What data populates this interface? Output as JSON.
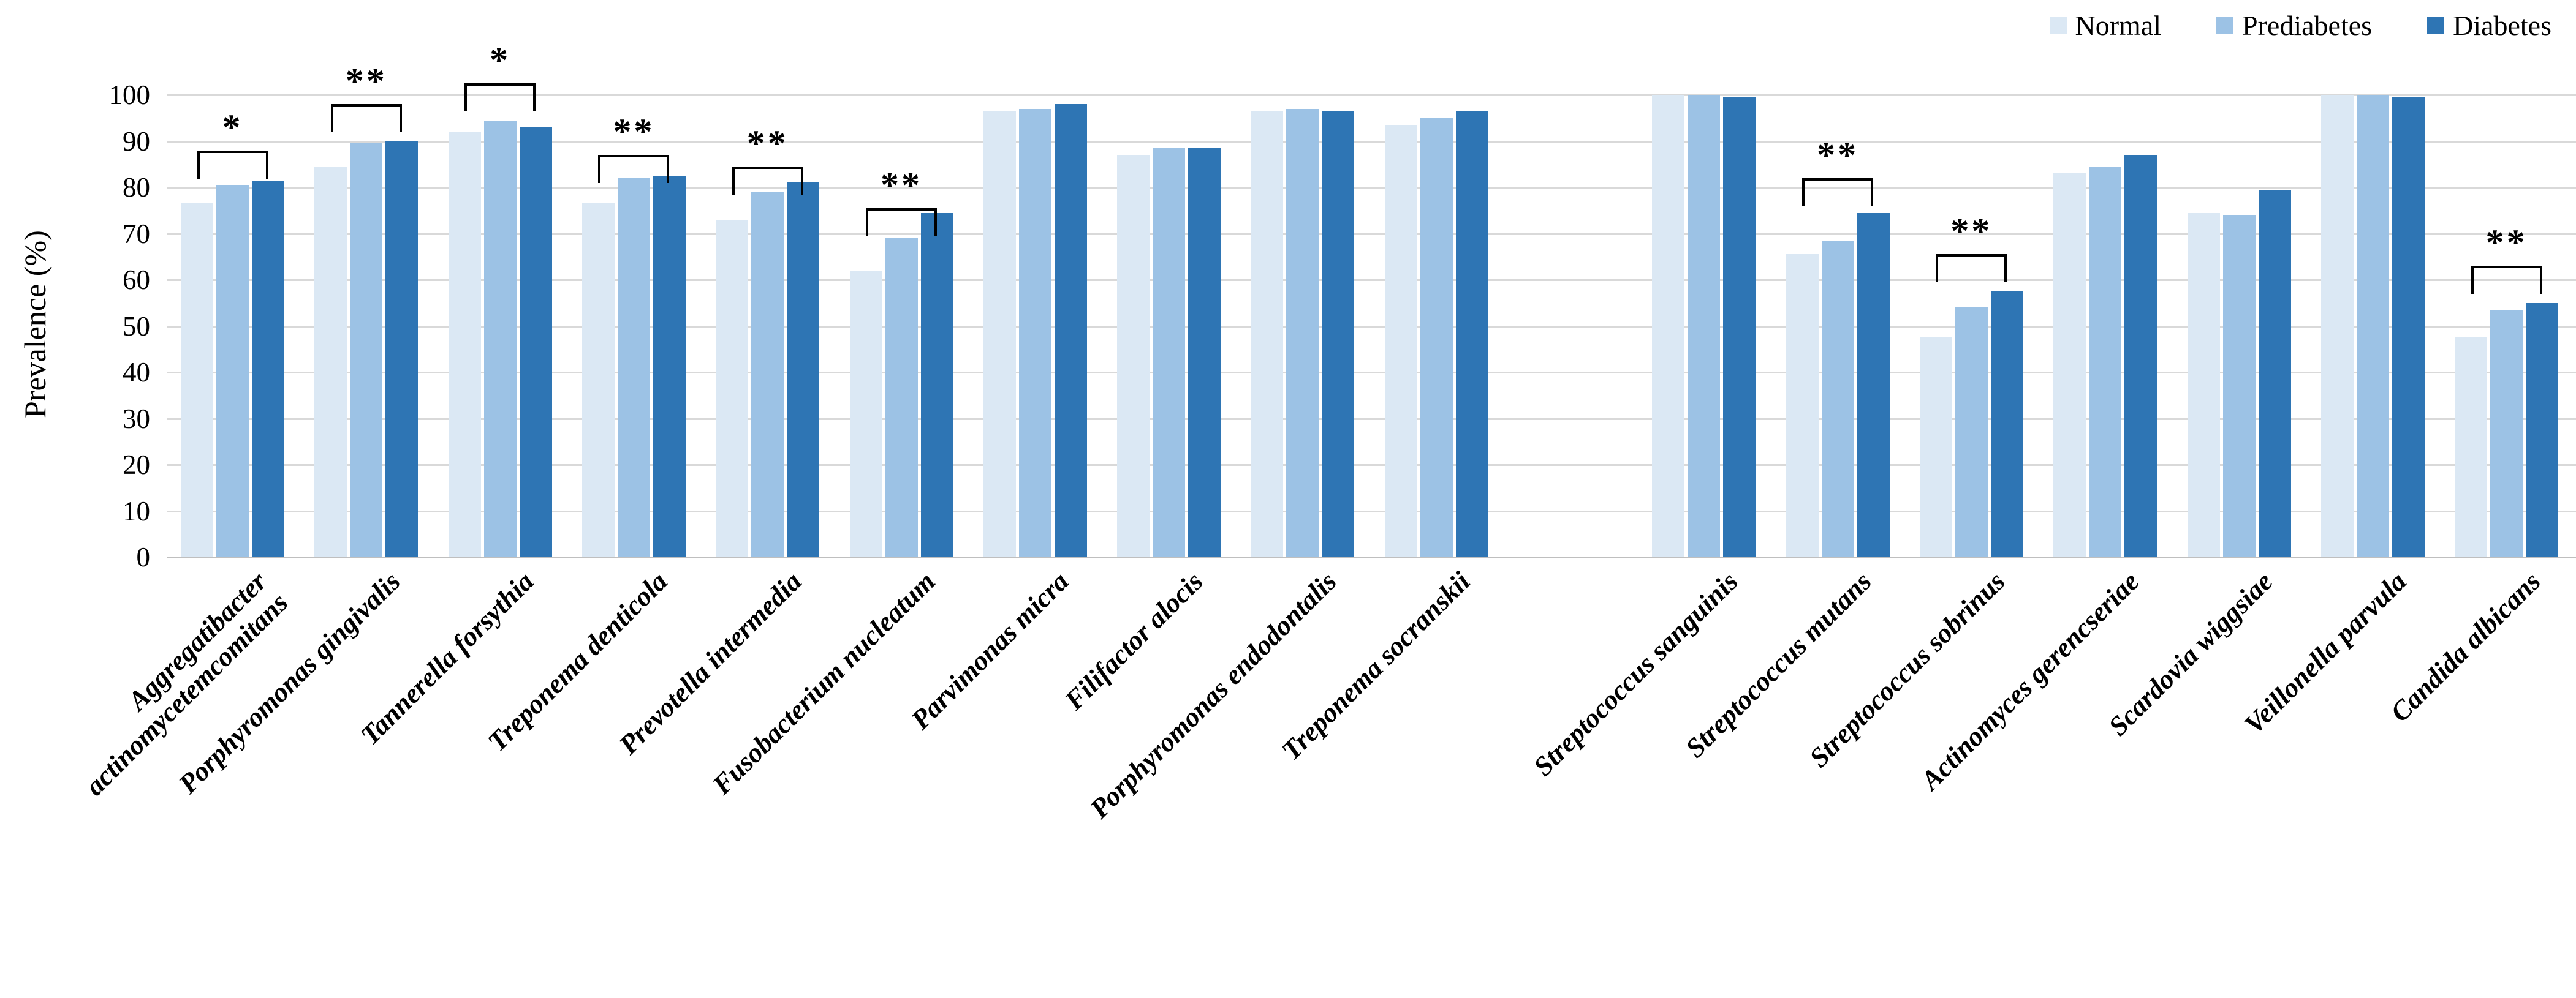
{
  "y_axis": {
    "title": "Prevalence (%)",
    "ticks": [
      0,
      10,
      20,
      30,
      40,
      50,
      60,
      70,
      80,
      90,
      100
    ]
  },
  "legend": {
    "position": "top-right",
    "items": [
      {
        "label": "Normal",
        "color": "#dbe8f4"
      },
      {
        "label": "Prediabetes",
        "color": "#9cc2e5"
      },
      {
        "label": "Diabetes",
        "color": "#2e75b4"
      }
    ]
  },
  "chart_data": {
    "type": "bar",
    "title": "",
    "xlabel": "",
    "ylabel": "Prevalence (%)",
    "ylim": [
      0,
      100
    ],
    "grid": true,
    "legend_position": "top-right",
    "categories": [
      "Aggregatibacter\nactinomycetemcomitans",
      "Porphyromonas gingivalis",
      "Tannerella forsythia",
      "Treponema denticola",
      "Prevotella intermedia",
      "Fusobacterium nucleatum",
      "Parvimonas micra",
      "Filifactor alocis",
      "Porphyromonas endodontalis",
      "Treponema socranskii",
      "Streptococcus sanguinis",
      "Streptococcus mutans",
      "Streptococcus sobrinus",
      "Actinomyces gerencseriae",
      "Scardovia wiggsiae",
      "Veillonella parvula",
      "Candida albicans"
    ],
    "category_gap_after_index": 9,
    "series": [
      {
        "name": "Normal",
        "color": "#dbe8f4",
        "values": [
          76.5,
          84.5,
          92,
          76.5,
          73,
          62,
          96.5,
          87,
          96.5,
          93.5,
          100,
          65.5,
          47.5,
          83,
          74.5,
          100,
          47.5
        ]
      },
      {
        "name": "Prediabetes",
        "color": "#9cc2e5",
        "values": [
          80.5,
          89.5,
          94.5,
          82,
          79,
          69,
          97,
          88.5,
          97,
          95,
          100,
          68.5,
          54,
          84.5,
          74,
          100,
          53.5
        ]
      },
      {
        "name": "Diabetes",
        "color": "#2e75b4",
        "values": [
          81.5,
          90,
          93,
          82.5,
          81,
          74.5,
          98,
          88.5,
          96.5,
          96.5,
          99.5,
          74.5,
          57.5,
          87,
          79.5,
          99.5,
          55
        ]
      }
    ],
    "significance_brackets": [
      {
        "category_index": 0,
        "label": "*",
        "y_percent": 88,
        "spans": [
          "Normal",
          "Diabetes"
        ]
      },
      {
        "category_index": 1,
        "label": "**",
        "y_percent": 98,
        "spans": [
          "Normal",
          "Diabetes"
        ]
      },
      {
        "category_index": 2,
        "label": "*",
        "y_percent": 102.5,
        "spans": [
          "Normal",
          "Diabetes"
        ]
      },
      {
        "category_index": 3,
        "label": "**",
        "y_percent": 87,
        "spans": [
          "Normal",
          "Diabetes"
        ]
      },
      {
        "category_index": 4,
        "label": "**",
        "y_percent": 84.5,
        "spans": [
          "Normal",
          "Diabetes"
        ]
      },
      {
        "category_index": 5,
        "label": "**",
        "y_percent": 75.5,
        "spans": [
          "Normal",
          "Diabetes"
        ]
      },
      {
        "category_index": 11,
        "label": "**",
        "y_percent": 82,
        "spans": [
          "Normal",
          "Diabetes"
        ]
      },
      {
        "category_index": 12,
        "label": "**",
        "y_percent": 65.5,
        "spans": [
          "Normal",
          "Diabetes"
        ]
      },
      {
        "category_index": 16,
        "label": "**",
        "y_percent": 63,
        "spans": [
          "Normal",
          "Diabetes"
        ]
      }
    ],
    "colors": {
      "gridline": "#d9d9d9",
      "axis_line": "#bfbfbf",
      "text": "#000000"
    }
  }
}
